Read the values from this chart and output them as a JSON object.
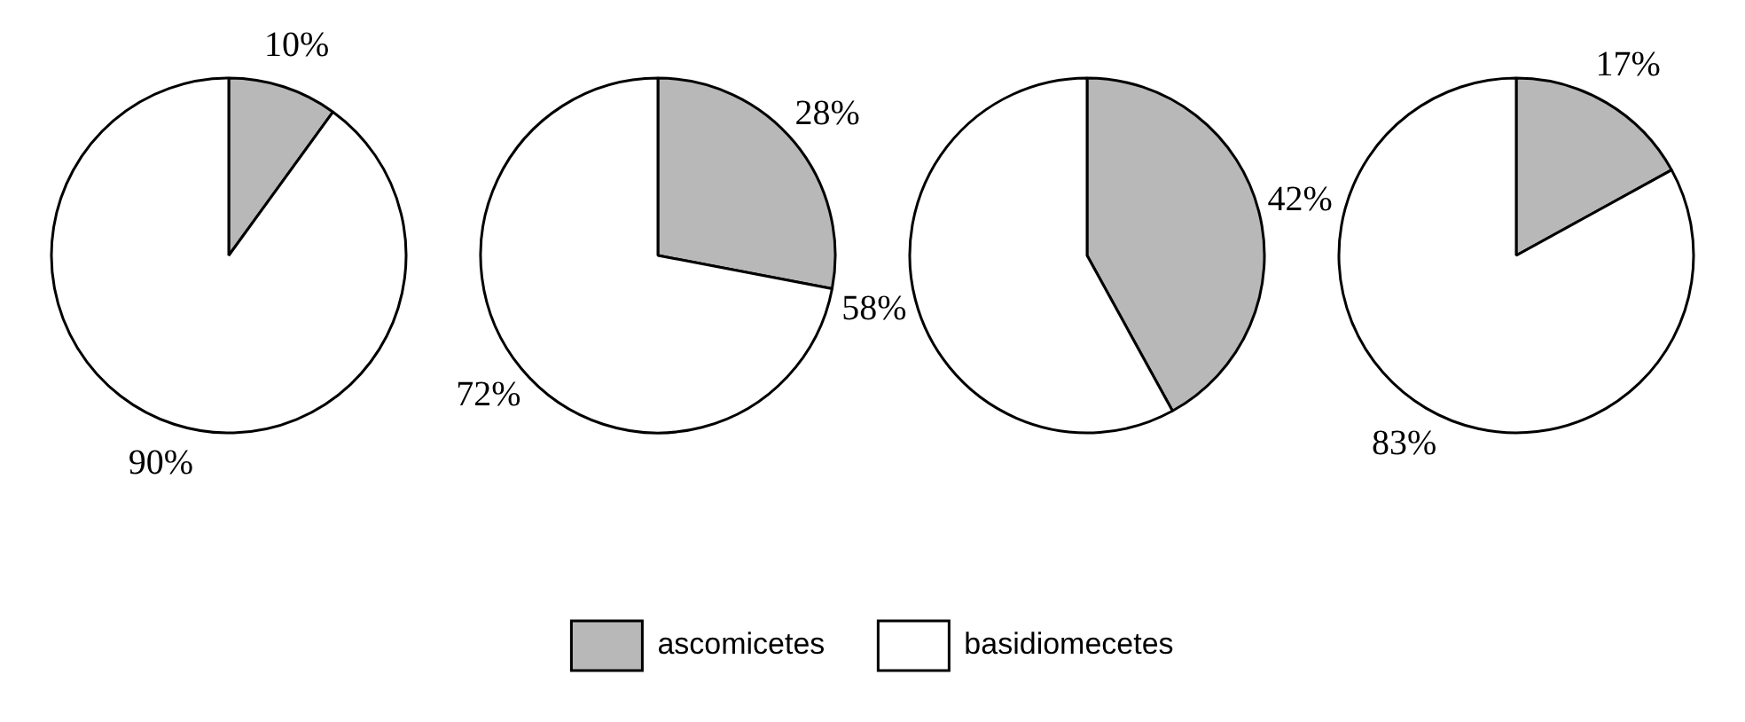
{
  "chart_data": [
    {
      "type": "pie",
      "categories": [
        "ascomicetes",
        "basidiomecetes"
      ],
      "values": [
        10,
        90
      ],
      "value_labels": [
        "10%",
        "90%"
      ],
      "colors": [
        "#b8b8b8",
        "#ffffff"
      ],
      "legend": "bottom"
    },
    {
      "type": "pie",
      "categories": [
        null,
        null
      ],
      "values": [
        28,
        72
      ],
      "value_labels": [
        "28%",
        "72%"
      ],
      "colors": [
        "#b8b8b8",
        "#ffffff"
      ]
    },
    {
      "type": "pie",
      "categories": [
        null,
        null
      ],
      "values": [
        42,
        58
      ],
      "value_labels": [
        "42%",
        "58%"
      ],
      "colors": [
        "#b8b8b8",
        "#ffffff"
      ]
    },
    {
      "type": "pie",
      "categories": [
        null,
        null
      ],
      "values": [
        17,
        83
      ],
      "value_labels": [
        "17%",
        "83%"
      ],
      "colors": [
        "#b8b8b8",
        "#ffffff"
      ]
    }
  ]
}
